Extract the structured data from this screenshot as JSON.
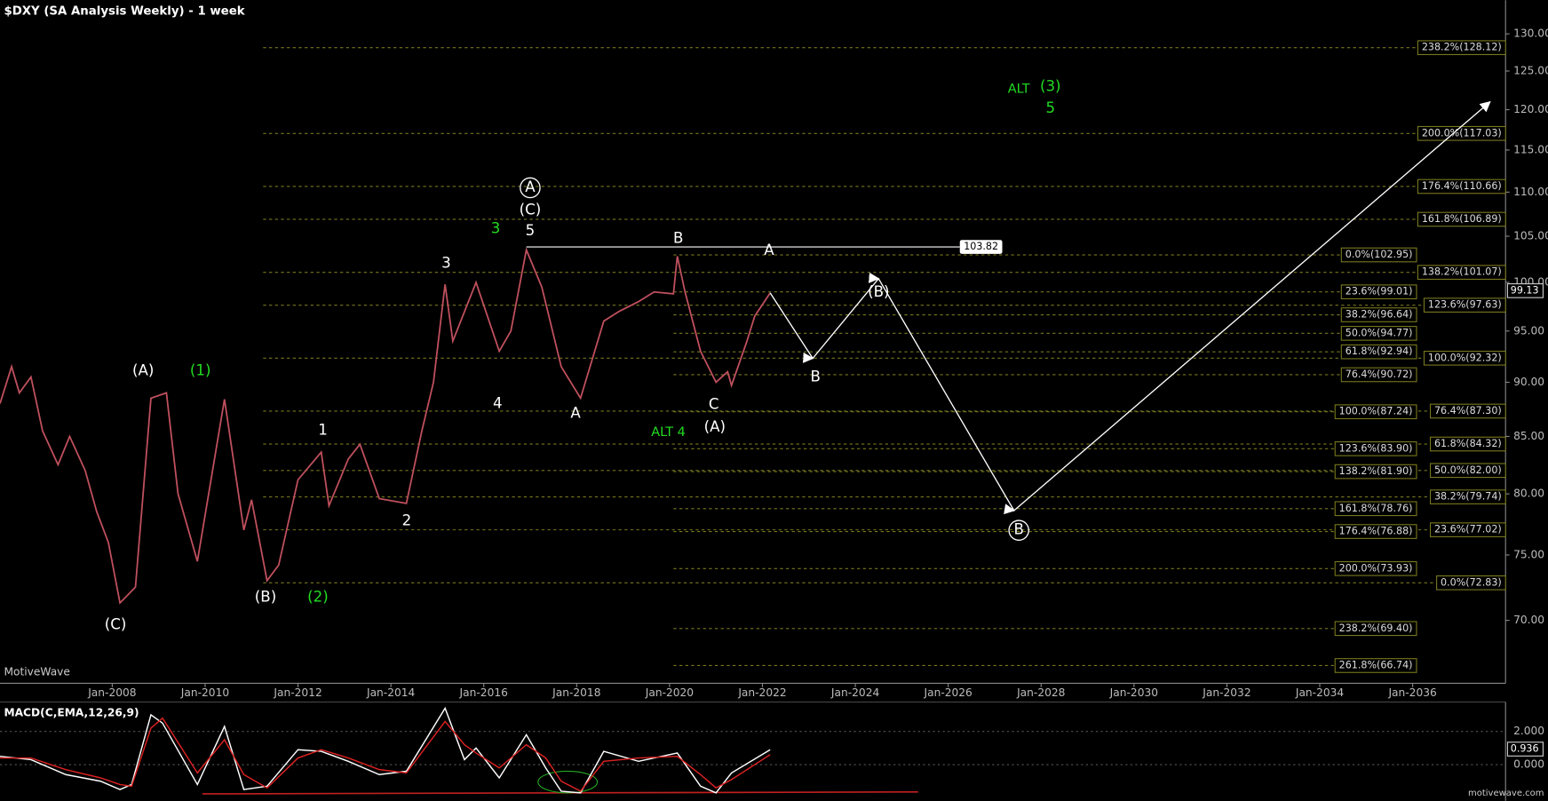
{
  "title": "$DXY (SA Analysis Weekly) - 1 week",
  "watermark": "MotiveWave",
  "footer": "motivewave.com",
  "chart_data": [
    {
      "type": "line",
      "log_scale": true,
      "xlim": [
        "2005-08",
        "2038-01"
      ],
      "ylim": [
        65.5,
        134.7
      ],
      "xticks": [
        {
          "value": "2008-01",
          "label": "Jan-2008"
        },
        {
          "value": "2010-01",
          "label": "Jan-2010"
        },
        {
          "value": "2012-01",
          "label": "Jan-2012"
        },
        {
          "value": "2014-01",
          "label": "Jan-2014"
        },
        {
          "value": "2016-01",
          "label": "Jan-2016"
        },
        {
          "value": "2018-01",
          "label": "Jan-2018"
        },
        {
          "value": "2020-01",
          "label": "Jan-2020"
        },
        {
          "value": "2022-01",
          "label": "Jan-2022"
        },
        {
          "value": "2024-01",
          "label": "Jan-2024"
        },
        {
          "value": "2026-01",
          "label": "Jan-2026"
        },
        {
          "value": "2028-01",
          "label": "Jan-2028"
        },
        {
          "value": "2030-01",
          "label": "Jan-2030"
        },
        {
          "value": "2032-01",
          "label": "Jan-2032"
        },
        {
          "value": "2034-01",
          "label": "Jan-2034"
        },
        {
          "value": "2036-01",
          "label": "Jan-2036"
        }
      ],
      "yticks": [
        {
          "value": 70,
          "label": "70.00"
        },
        {
          "value": 75,
          "label": "75.00"
        },
        {
          "value": 80,
          "label": "80.00"
        },
        {
          "value": 85,
          "label": "85.00"
        },
        {
          "value": 90,
          "label": "90.00"
        },
        {
          "value": 95,
          "label": "95.00"
        },
        {
          "value": 100,
          "label": "100.00"
        },
        {
          "value": 105,
          "label": "105.00"
        },
        {
          "value": 110,
          "label": "110.00"
        },
        {
          "value": 115,
          "label": "115.00"
        },
        {
          "value": 120,
          "label": "120.00"
        },
        {
          "value": 125,
          "label": "125.00"
        },
        {
          "value": 130,
          "label": "130.00"
        }
      ],
      "x": [
        "2005-08",
        "2005-11",
        "2006-01",
        "2006-04",
        "2006-07",
        "2006-11",
        "2007-02",
        "2007-06",
        "2007-09",
        "2007-12",
        "2008-03",
        "2008-07",
        "2008-11",
        "2009-03",
        "2009-06",
        "2009-11",
        "2010-06",
        "2010-11",
        "2011-01",
        "2011-05",
        "2011-08",
        "2012-01",
        "2012-07",
        "2012-09",
        "2013-02",
        "2013-05",
        "2013-10",
        "2014-05",
        "2014-09",
        "2014-12",
        "2015-03",
        "2015-05",
        "2015-11",
        "2016-05",
        "2016-08",
        "2016-12",
        "2017-04",
        "2017-09",
        "2018-02",
        "2018-08",
        "2018-12",
        "2019-05",
        "2019-09",
        "2020-02",
        "2020-03",
        "2020-05",
        "2020-09",
        "2021-01",
        "2021-04",
        "2021-05",
        "2021-09",
        "2021-11",
        "2022-03"
      ],
      "series": [
        {
          "color": "#c0505e",
          "values": [
            88,
            91.5,
            89,
            90.5,
            85.5,
            82.5,
            85,
            82,
            78.5,
            76,
            71.3,
            72.5,
            88.5,
            89,
            80,
            74.5,
            88.4,
            77,
            79.5,
            73,
            74.2,
            81.2,
            83.6,
            79,
            83,
            84.3,
            79.6,
            79.2,
            85.5,
            90,
            99.8,
            94,
            100,
            93,
            95,
            103.5,
            99.5,
            91.5,
            88.5,
            96,
            97,
            98,
            99,
            98.8,
            102.8,
            99,
            93,
            90,
            91,
            89.7,
            94,
            96.5,
            98.9
          ]
        }
      ],
      "projection": {
        "color": "#ffffff",
        "x": [
          "2022-03",
          "2023-02",
          "2024-07",
          "2027-06",
          "2037-09"
        ],
        "values": [
          98.9,
          92.3,
          100.4,
          78.6,
          121
        ]
      },
      "resistance": {
        "value": 103.82,
        "label": "103.82",
        "x": [
          "2016-12",
          "2026-04"
        ]
      },
      "last_price": {
        "value": 99.13,
        "label": "99.13"
      },
      "fib_sets": [
        {
          "x": [
            "2011-04",
            "2038-01"
          ],
          "levels": [
            {
              "value": 128.12,
              "label": "238.2%(128.12)"
            },
            {
              "value": 117.03,
              "label": "200.0%(117.03)"
            },
            {
              "value": 110.66,
              "label": "176.4%(110.66)"
            },
            {
              "value": 106.89,
              "label": "161.8%(106.89)"
            },
            {
              "value": 101.07,
              "label": "138.2%(101.07)"
            },
            {
              "value": 97.63,
              "label": "123.6%(97.63)"
            },
            {
              "value": 92.32,
              "label": "100.0%(92.32)"
            },
            {
              "value": 87.3,
              "label": "76.4%(87.30)"
            },
            {
              "value": 84.32,
              "label": "61.8%(84.32)"
            },
            {
              "value": 82.0,
              "label": "50.0%(82.00)"
            },
            {
              "value": 79.74,
              "label": "38.2%(79.74)"
            },
            {
              "value": 77.02,
              "label": "23.6%(77.02)"
            },
            {
              "value": 72.83,
              "label": "0.0%(72.83)"
            }
          ]
        },
        {
          "x": [
            "2020-02",
            "2036-02"
          ],
          "levels": [
            {
              "value": 102.95,
              "label": "0.0%(102.95)"
            },
            {
              "value": 99.01,
              "label": "23.6%(99.01)"
            },
            {
              "value": 96.64,
              "label": "38.2%(96.64)"
            },
            {
              "value": 94.77,
              "label": "50.0%(94.77)"
            },
            {
              "value": 92.94,
              "label": "61.8%(92.94)"
            },
            {
              "value": 90.72,
              "label": "76.4%(90.72)"
            },
            {
              "value": 87.24,
              "label": "100.0%(87.24)"
            },
            {
              "value": 83.9,
              "label": "123.6%(83.90)"
            },
            {
              "value": 81.9,
              "label": "138.2%(81.90)"
            },
            {
              "value": 78.76,
              "label": "161.8%(78.76)"
            },
            {
              "value": 76.88,
              "label": "176.4%(76.88)"
            },
            {
              "value": 73.93,
              "label": "200.0%(73.93)"
            },
            {
              "value": 69.4,
              "label": "238.2%(69.40)"
            },
            {
              "value": 66.74,
              "label": "261.8%(66.74)"
            }
          ]
        }
      ],
      "annotations": [
        {
          "text": "(C)",
          "color": "#ffffff"
        },
        {
          "text": "(A)",
          "color": "#ffffff"
        },
        {
          "text": "(1)",
          "color": "#22dd22"
        },
        {
          "text": "(B)",
          "color": "#ffffff"
        },
        {
          "text": "(2)",
          "color": "#22dd22"
        },
        {
          "text": "1",
          "color": "#ffffff"
        },
        {
          "text": "2",
          "color": "#ffffff"
        },
        {
          "text": "3",
          "color": "#ffffff"
        },
        {
          "text": "4",
          "color": "#ffffff"
        },
        {
          "text": "3",
          "color": "#22dd22"
        },
        {
          "text": "5",
          "color": "#ffffff"
        },
        {
          "text": "(C)",
          "color": "#ffffff"
        },
        {
          "text": "A",
          "color": "#ffffff",
          "circled": true
        },
        {
          "text": "A",
          "color": "#ffffff"
        },
        {
          "text": "B",
          "color": "#ffffff"
        },
        {
          "text": "ALT 4",
          "color": "#22dd22"
        },
        {
          "text": "C",
          "color": "#ffffff"
        },
        {
          "text": "(A)",
          "color": "#ffffff"
        },
        {
          "text": "A",
          "color": "#ffffff"
        },
        {
          "text": "B",
          "color": "#ffffff"
        },
        {
          "text": "(B)",
          "color": "#ffffff"
        },
        {
          "text": "B",
          "color": "#ffffff",
          "circled": true
        },
        {
          "text": "ALT",
          "color": "#22dd22"
        },
        {
          "text": "(3)",
          "color": "#22dd22"
        },
        {
          "text": "5",
          "color": "#22dd22"
        }
      ]
    },
    {
      "type": "macd",
      "title": "MACD(C,EMA,12,26,9)",
      "xlim": [
        "2005-08",
        "2038-01"
      ],
      "ylim": [
        -2,
        3.65
      ],
      "yticks": [
        {
          "value": 0,
          "label": "0.000"
        },
        {
          "value": 2,
          "label": "2.000"
        }
      ],
      "last_value": {
        "value": 0.936,
        "label": "0.936"
      },
      "x": [
        "2005-08",
        "2006-04",
        "2007-01",
        "2007-10",
        "2008-03",
        "2008-06",
        "2008-11",
        "2009-02",
        "2009-11",
        "2010-06",
        "2010-11",
        "2011-05",
        "2012-01",
        "2012-07",
        "2013-02",
        "2013-10",
        "2014-05",
        "2015-03",
        "2015-08",
        "2015-11",
        "2016-05",
        "2016-12",
        "2017-05",
        "2017-09",
        "2018-02",
        "2018-08",
        "2019-05",
        "2020-03",
        "2020-09",
        "2021-01",
        "2021-05",
        "2022-03"
      ],
      "series": [
        {
          "color": "#ffffff",
          "values": [
            0.5,
            0.3,
            -0.6,
            -1.0,
            -1.5,
            -1.2,
            3.0,
            2.5,
            -1.2,
            2.3,
            -1.5,
            -1.3,
            0.9,
            0.8,
            0.2,
            -0.6,
            -0.4,
            3.4,
            0.3,
            1.0,
            -0.8,
            1.8,
            -0.2,
            -1.6,
            -1.7,
            0.8,
            0.2,
            0.7,
            -1.3,
            -1.7,
            -0.5,
            0.9
          ]
        },
        {
          "color": "#dd2222",
          "values": [
            0.4,
            0.4,
            -0.3,
            -0.8,
            -1.2,
            -1.3,
            2.2,
            2.8,
            -0.5,
            1.5,
            -0.6,
            -1.4,
            0.4,
            0.9,
            0.4,
            -0.3,
            -0.5,
            2.6,
            1.2,
            0.7,
            -0.2,
            1.2,
            0.4,
            -1.0,
            -1.6,
            0.2,
            0.4,
            0.5,
            -0.6,
            -1.4,
            -0.9,
            0.6
          ]
        }
      ]
    }
  ]
}
